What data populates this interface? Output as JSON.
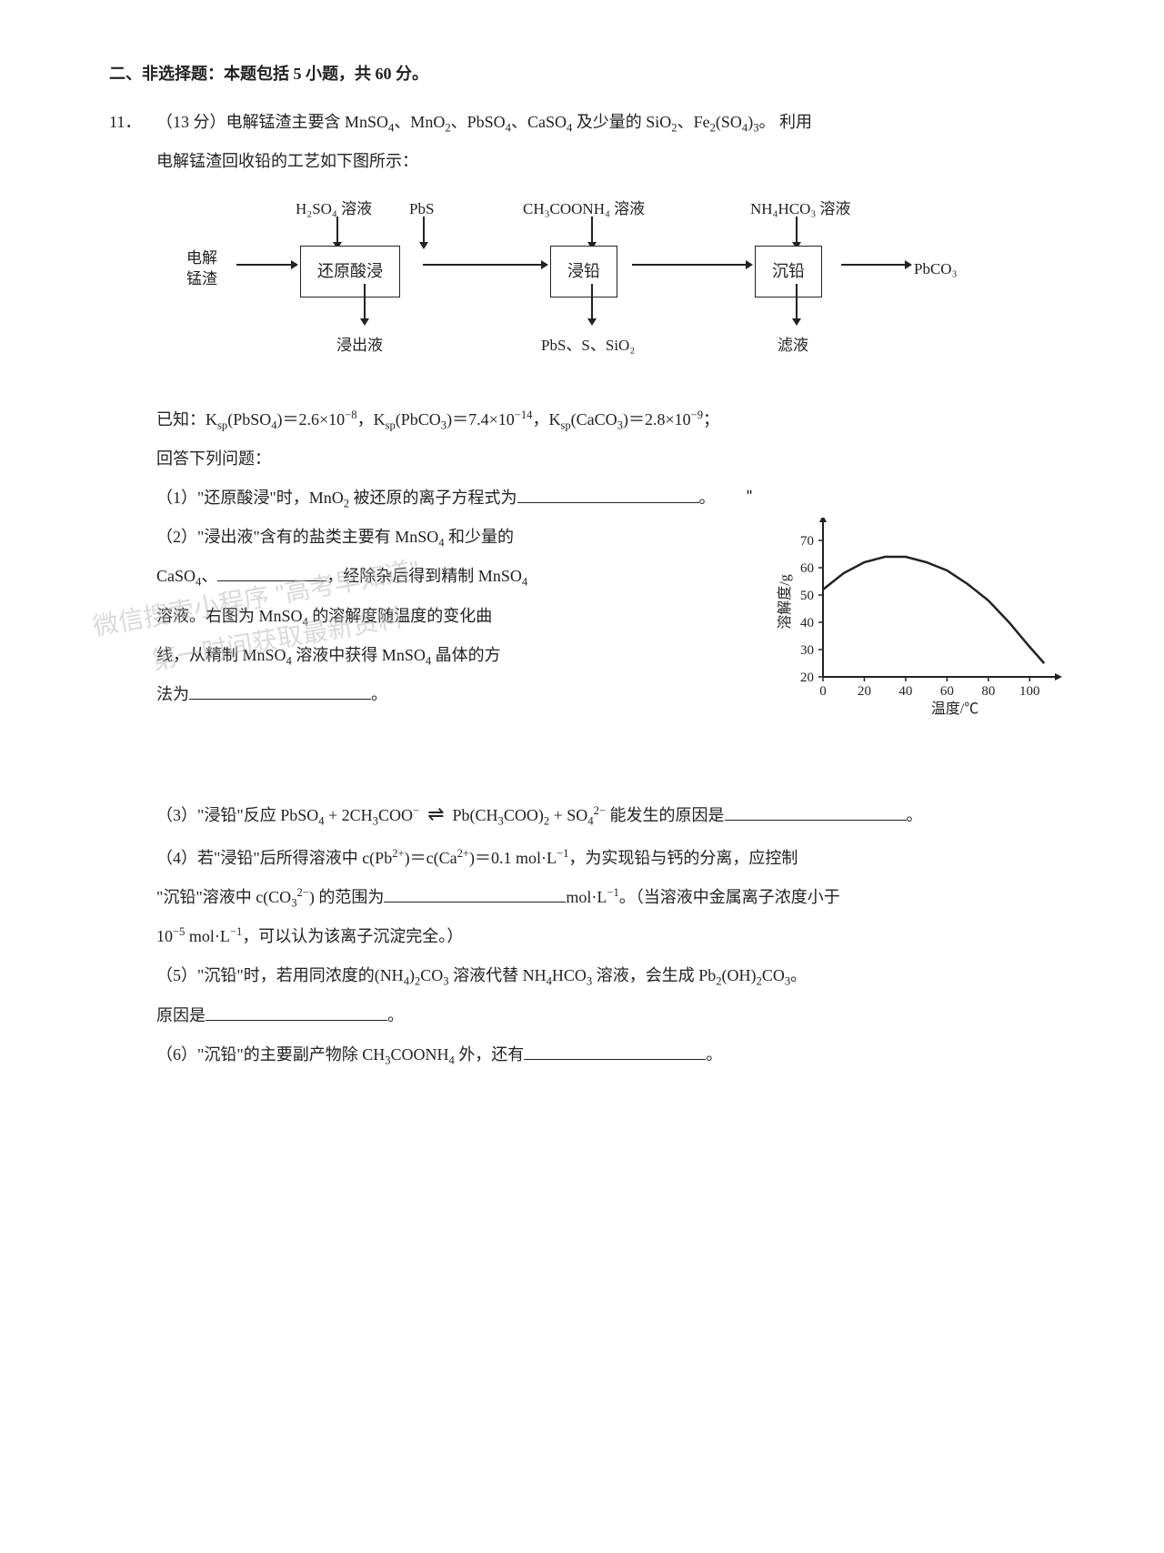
{
  "colors": {
    "text": "#222222",
    "bg": "#ffffff",
    "watermark": "#bbbbbb",
    "axis": "#222222"
  },
  "section": {
    "title": "二、非选择题：本题包括 5 小题，共 60 分。"
  },
  "q11": {
    "number": "11．",
    "intro_line1_a": "（13 分）电解锰渣主要含 MnSO",
    "intro_line1_b": "、MnO",
    "intro_line1_c": "、PbSO",
    "intro_line1_d": "、CaSO",
    "intro_line1_e": " 及少量的 SiO",
    "intro_line1_f": "、Fe",
    "intro_line1_g": "(SO",
    "intro_line1_h": ")",
    "intro_line1_end": "。 利用",
    "intro_line2": "电解锰渣回收铅的工艺如下图所示：",
    "known_a": "已知：K",
    "known_b": "(PbSO",
    "known_c": ")＝2.6×10",
    "known_d": "，K",
    "known_e": "(PbCO",
    "known_f": ")＝7.4×10",
    "known_g": "，K",
    "known_h": "(CaCO",
    "known_i": ")＝2.8×10",
    "known_j": "；",
    "answer_prompt": "回答下列问题：",
    "p1_a": "（1）\"还原酸浸\"时，MnO",
    "p1_b": " 被还原的离子方程式为",
    "p1_end": "。",
    "dq_open": "\"",
    "dq_close": "\"",
    "p2_a": "（2）\"浸出液\"含有的盐类主要有 MnSO",
    "p2_b": " 和少量的",
    "p2_c": "CaSO",
    "p2_d": "、",
    "p2_e": "，经除杂后得到精制 MnSO",
    "p2_f": "溶液。右图为 MnSO",
    "p2_g": " 的溶解度随温度的变化曲",
    "p2_h": "线，从精制 MnSO",
    "p2_i": " 溶液中获得 MnSO",
    "p2_j": " 晶体的方",
    "p2_k": "法为",
    "p2_end": "。",
    "p3_a": "（3）\"浸铅\"反应 PbSO",
    "p3_b": " + 2CH",
    "p3_c": "COO",
    "p3_arrow": "⇌",
    "p3_d": "Pb(CH",
    "p3_e": "COO)",
    "p3_f": " + SO",
    "p3_g": " 能发生的原因是",
    "p3_end": "。",
    "p4_a": "（4）若\"浸铅\"后所得溶液中 c(Pb",
    "p4_b": ")＝c(Ca",
    "p4_c": ")＝0.1 mol·L",
    "p4_d": "，为实现铅与钙的分离，应控制",
    "p4_e": "\"沉铅\"溶液中 c(CO",
    "p4_f": ") 的范围为",
    "p4_g": "mol·L",
    "p4_h": "。（当溶液中金属离子浓度小于",
    "p4_i": "10",
    "p4_j": " mol·L",
    "p4_k": "，可以认为该离子沉淀完全。）",
    "p5_a": "（5）\"沉铅\"时，若用同浓度的(NH",
    "p5_b": ")",
    "p5_c": "CO",
    "p5_d": " 溶液代替 NH",
    "p5_e": "HCO",
    "p5_f": " 溶液，会生成 Pb",
    "p5_g": "(OH)",
    "p5_h": "CO",
    "p5_i": "。",
    "p5_j": "原因是",
    "p5_end": "。",
    "p6_a": "（6）\"沉铅\"的主要副产物除 CH",
    "p6_b": "COONH",
    "p6_c": " 外，还有",
    "p6_end": "。"
  },
  "flowchart": {
    "input": "电解\n锰渣",
    "in1a": "H₂SO₄ 溶液",
    "in1b": "PbS",
    "box1": "还原酸浸",
    "out1": "浸出液",
    "in2": "CH₃COONH₄ 溶液",
    "box2": "浸铅",
    "out2": "PbS、S、SiO₂",
    "in3": "NH₄HCO₃ 溶液",
    "box3": "沉铅",
    "out3": "滤液",
    "product": "PbCO₃"
  },
  "chart": {
    "type": "line",
    "xlabel": "温度/℃",
    "ylabel": "溶解度/g",
    "xlim": [
      0,
      110
    ],
    "ylim": [
      20,
      75
    ],
    "xticks": [
      0,
      20,
      40,
      60,
      80,
      100
    ],
    "yticks": [
      20,
      30,
      40,
      50,
      60,
      70
    ],
    "line_color": "#222222",
    "line_width": 2.5,
    "axis_color": "#222222",
    "background": "#ffffff",
    "data_x": [
      0,
      10,
      20,
      30,
      40,
      50,
      60,
      70,
      80,
      90,
      100,
      107
    ],
    "data_y": [
      52,
      58,
      62,
      64,
      64,
      62,
      59,
      54,
      48,
      40,
      31,
      25
    ]
  },
  "watermark": {
    "line1": "微信搜索小程序 \"高考早知道\"",
    "line2": "第一时间获取最新资料"
  }
}
